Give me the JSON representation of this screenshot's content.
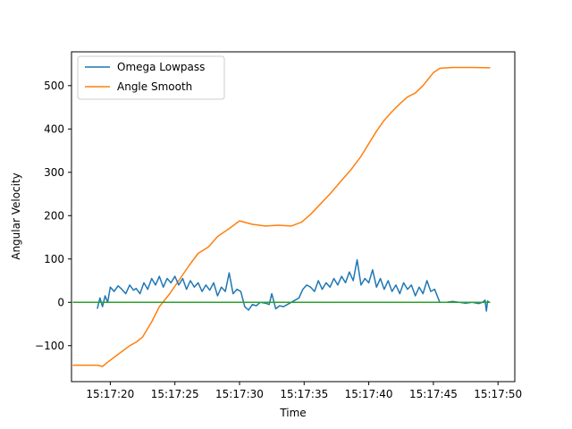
{
  "chart_data": {
    "type": "line",
    "title": "",
    "xlabel": "Time",
    "ylabel": "Angular Velocity",
    "x_unit": "seconds",
    "xlim": [
      "15:17:17.0",
      "15:17:51.3"
    ],
    "ylim": [
      -183,
      578
    ],
    "xticks": [
      "15:17:20",
      "15:17:25",
      "15:17:30",
      "15:17:35",
      "15:17:40",
      "15:17:45",
      "15:17:50"
    ],
    "yticks": [
      -100,
      0,
      100,
      200,
      300,
      400,
      500
    ],
    "grid": false,
    "legend": {
      "position": "top-left",
      "entries": [
        "Omega Lowpass",
        "Angle Smooth"
      ]
    },
    "series": [
      {
        "name": "Angle Smooth",
        "color": "#ff7f0e",
        "x": [
          "15:17:17.1",
          "15:17:19.0",
          "15:17:19.4",
          "15:17:19.8",
          "15:17:20.6",
          "15:17:21.5",
          "15:17:22.0",
          "15:17:22.5",
          "15:17:23.2",
          "15:17:23.8",
          "15:17:24.6",
          "15:17:25.3",
          "15:17:26.1",
          "15:17:26.8",
          "15:17:27.6",
          "15:17:28.3",
          "15:17:29.2",
          "15:17:30.0",
          "15:17:31.0",
          "15:17:32.0",
          "15:17:33.0",
          "15:17:34.0",
          "15:17:34.8",
          "15:17:35.5",
          "15:17:36.2",
          "15:17:37.0",
          "15:17:37.8",
          "15:17:38.6",
          "15:17:39.4",
          "15:17:40.0",
          "15:17:40.6",
          "15:17:41.2",
          "15:17:41.8",
          "15:17:42.4",
          "15:17:43.0",
          "15:17:43.6",
          "15:17:44.2",
          "15:17:44.6",
          "15:17:45.0",
          "15:17:45.5",
          "15:17:46.5",
          "15:17:48.0",
          "15:17:49.4"
        ],
        "values": [
          -145,
          -145,
          -148,
          -138,
          -120,
          -100,
          -92,
          -80,
          -45,
          -10,
          20,
          50,
          85,
          113,
          128,
          152,
          170,
          188,
          180,
          176,
          178,
          176,
          185,
          203,
          225,
          250,
          278,
          305,
          337,
          366,
          395,
          420,
          440,
          458,
          474,
          483,
          500,
          515,
          530,
          540,
          542,
          542,
          541
        ]
      },
      {
        "name": "Omega Lowpass",
        "color": "#1f77b4",
        "x": [
          "15:17:19.0",
          "15:17:19.2",
          "15:17:19.4",
          "15:17:19.6",
          "15:17:19.8",
          "15:17:20.0",
          "15:17:20.3",
          "15:17:20.6",
          "15:17:20.9",
          "15:17:21.2",
          "15:17:21.5",
          "15:17:21.8",
          "15:17:22.0",
          "15:17:22.3",
          "15:17:22.6",
          "15:17:22.9",
          "15:17:23.2",
          "15:17:23.5",
          "15:17:23.8",
          "15:17:24.1",
          "15:17:24.4",
          "15:17:24.7",
          "15:17:25.0",
          "15:17:25.3",
          "15:17:25.6",
          "15:17:25.9",
          "15:17:26.2",
          "15:17:26.5",
          "15:17:26.8",
          "15:17:27.1",
          "15:17:27.4",
          "15:17:27.7",
          "15:17:28.0",
          "15:17:28.3",
          "15:17:28.6",
          "15:17:28.9",
          "15:17:29.2",
          "15:17:29.5",
          "15:17:29.8",
          "15:17:30.1",
          "15:17:30.4",
          "15:17:30.7",
          "15:17:31.0",
          "15:17:31.3",
          "15:17:31.6",
          "15:17:32.0",
          "15:17:32.3",
          "15:17:32.5",
          "15:17:32.8",
          "15:17:33.1",
          "15:17:33.4",
          "15:17:33.7",
          "15:17:34.0",
          "15:17:34.3",
          "15:17:34.6",
          "15:17:34.9",
          "15:17:35.2",
          "15:17:35.5",
          "15:17:35.8",
          "15:17:36.1",
          "15:17:36.4",
          "15:17:36.7",
          "15:17:37.0",
          "15:17:37.3",
          "15:17:37.6",
          "15:17:37.9",
          "15:17:38.2",
          "15:17:38.5",
          "15:17:38.8",
          "15:17:39.1",
          "15:17:39.4",
          "15:17:39.7",
          "15:17:40.0",
          "15:17:40.3",
          "15:17:40.6",
          "15:17:40.9",
          "15:17:41.2",
          "15:17:41.5",
          "15:17:41.8",
          "15:17:42.1",
          "15:17:42.4",
          "15:17:42.7",
          "15:17:43.0",
          "15:17:43.3",
          "15:17:43.6",
          "15:17:43.9",
          "15:17:44.2",
          "15:17:44.5",
          "15:17:44.8",
          "15:17:45.1",
          "15:17:45.5",
          "15:17:46.0",
          "15:17:46.5",
          "15:17:47.0",
          "15:17:47.5",
          "15:17:48.0",
          "15:17:48.5",
          "15:17:48.8",
          "15:17:49.0",
          "15:17:49.1",
          "15:17:49.2",
          "15:17:49.3",
          "15:17:49.4"
        ],
        "values": [
          -15,
          10,
          -10,
          15,
          0,
          35,
          25,
          38,
          30,
          20,
          40,
          28,
          32,
          20,
          45,
          30,
          55,
          40,
          60,
          35,
          55,
          45,
          60,
          40,
          55,
          30,
          50,
          35,
          45,
          25,
          40,
          28,
          45,
          15,
          35,
          25,
          68,
          20,
          30,
          25,
          -10,
          -18,
          -5,
          -8,
          0,
          -2,
          -5,
          20,
          -15,
          -8,
          -10,
          -5,
          0,
          5,
          10,
          30,
          40,
          35,
          25,
          50,
          30,
          45,
          35,
          55,
          40,
          60,
          45,
          70,
          50,
          98,
          40,
          55,
          45,
          75,
          35,
          55,
          30,
          50,
          25,
          40,
          20,
          45,
          30,
          40,
          15,
          35,
          20,
          50,
          25,
          30,
          0,
          0,
          2,
          0,
          -2,
          0,
          -3,
          0,
          5,
          -20,
          3,
          0,
          0
        ]
      },
      {
        "name": "",
        "color": "#2ca02c",
        "x": [
          "15:17:17.1",
          "15:17:49.4"
        ],
        "values": [
          0,
          0
        ]
      }
    ]
  }
}
